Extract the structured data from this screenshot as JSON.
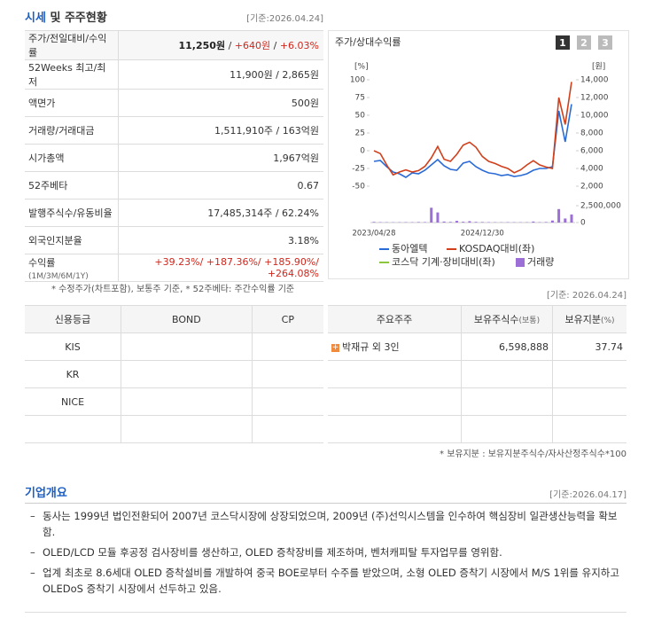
{
  "header": {
    "title_strong": "시세",
    "title_rest": "및 주주현황",
    "date": "[기준:2026.04.24]"
  },
  "quote_table": {
    "rows": [
      {
        "label": "주가/전일대비/수익률",
        "value_parts": [
          "11,250원",
          " / ",
          "+640원",
          " / ",
          "+6.03%"
        ]
      },
      {
        "label": "52Weeks 최고/최저",
        "value": "11,900원 / 2,865원"
      },
      {
        "label": "액면가",
        "value": "500원"
      },
      {
        "label": "거래량/거래대금",
        "value": "1,511,910주 / 163억원"
      },
      {
        "label": "시가총액",
        "value": "1,967억원"
      },
      {
        "label": "52주베타",
        "value": "0.67"
      },
      {
        "label": "발행주식수/유동비율",
        "value": "17,485,314주 / 62.24%"
      },
      {
        "label": "외국인지분율",
        "value": "3.18%"
      },
      {
        "label": "수익률",
        "label_sub": "(1M/3M/6M/1Y)",
        "value": "+39.23%/ +187.36%/ +185.90%/ +264.08%"
      }
    ],
    "note": "* 수정주가(차트포함), 보통주 기준, * 52주베타: 주간수익률 기준"
  },
  "chart_data": {
    "type": "line",
    "title": "주가/상대수익률",
    "buttons": [
      "1",
      "2",
      "3"
    ],
    "y_unit": "[%]",
    "y2_unit": "[원]",
    "categories": [
      "2023/04/28",
      null,
      null,
      null,
      null,
      null,
      null,
      null,
      null,
      null,
      null,
      null,
      null,
      null,
      null,
      null,
      null,
      "2024/12/30",
      null,
      null,
      null,
      null,
      null,
      null,
      null,
      null,
      null,
      null,
      null,
      null,
      null,
      null
    ],
    "ylim": [
      -50,
      100
    ],
    "yticks": [
      -50,
      -25,
      0,
      25,
      50,
      75,
      100
    ],
    "y2lim": [
      2000,
      14000
    ],
    "y2ticks": [
      {
        "value": 2000,
        "label": "2,000"
      },
      {
        "value": 4000,
        "label": "4,000"
      },
      {
        "value": 6000,
        "label": "6,000"
      },
      {
        "value": 8000,
        "label": "8,000"
      },
      {
        "value": 10000,
        "label": "10,000"
      },
      {
        "value": 12000,
        "label": "12,000"
      },
      {
        "value": 14000,
        "label": "14,000"
      }
    ],
    "y3lim": [
      0,
      2500000
    ],
    "y3ticks": [
      0,
      {
        "value": 2500000,
        "label": "2,500,000"
      }
    ],
    "series": [
      {
        "name": "동아엘텍",
        "color": "#2b6bd6",
        "axis": "y2",
        "values": [
          4800,
          4900,
          4200,
          3600,
          3400,
          3000,
          3500,
          3400,
          3800,
          4400,
          5000,
          4300,
          3900,
          3800,
          4600,
          4800,
          4200,
          3800,
          3500,
          3400,
          3200,
          3300,
          3100,
          3200,
          3400,
          3800,
          4000,
          4000,
          4200,
          10500,
          7000,
          11250
        ]
      },
      {
        "name": "KOSDAQ대비(좌)",
        "color": "#d0401c",
        "values": [
          0,
          -4,
          -20,
          -34,
          -30,
          -27,
          -30,
          -28,
          -22,
          -10,
          6,
          -12,
          -15,
          -5,
          8,
          12,
          5,
          -8,
          -15,
          -18,
          -22,
          -25,
          -31,
          -27,
          -20,
          -14,
          -20,
          -23,
          -25,
          75,
          37,
          97
        ]
      },
      {
        "name": "코스닥 기계·장비대비(좌)",
        "color": "#8cc63f"
      },
      {
        "name": "거래량",
        "color": "#9b6fd6",
        "axis": "y3",
        "kind": "bar",
        "values": [
          100000,
          60000,
          50000,
          40000,
          50000,
          60000,
          50000,
          80000,
          70000,
          2200000,
          1500000,
          150000,
          100000,
          250000,
          120000,
          200000,
          100000,
          80000,
          60000,
          50000,
          40000,
          60000,
          50000,
          40000,
          50000,
          150000,
          60000,
          80000,
          300000,
          2000000,
          600000,
          1200000
        ]
      }
    ],
    "date": "[기준: 2026.04.24]"
  },
  "rating_table": {
    "header": [
      "신용등급",
      "BOND",
      "CP"
    ],
    "rows": [
      [
        "KIS"
      ],
      [
        "KR"
      ],
      [
        "NICE"
      ]
    ]
  },
  "holder_table": {
    "header": [
      "주요주주",
      "보유주식수",
      "(보통)",
      "보유지분",
      "(%)"
    ],
    "rows": [
      [
        "박재규 외 3인",
        "6,598,888",
        "37.74"
      ]
    ],
    "note": "* 보유지분 : 보유지분주식수/자사산정주식수*100"
  },
  "overview": {
    "title": "기업개요",
    "date": "[기준:2026.04.17]",
    "items": [
      "동사는 1999년 법인전환되어 2007년 코스닥시장에 상장되었으며, 2009년 (주)선익시스템을 인수하여 핵심장비 일관생산능력을 확보함.",
      "OLED/LCD 모듈 후공정 검사장비를 생산하고, OLED 증착장비를 제조하며, 벤처캐피탈 투자업무를 영위함.",
      "업계 최초로 8.6세대 OLED 증착설비를 개발하여 중국 BOE로부터 수주를 받았으며, 소형 OLED 증착기 시장에서 M/S 1위를 유지하고 OLEDoS 증착기 시장에서 선두하고 있음."
    ]
  }
}
